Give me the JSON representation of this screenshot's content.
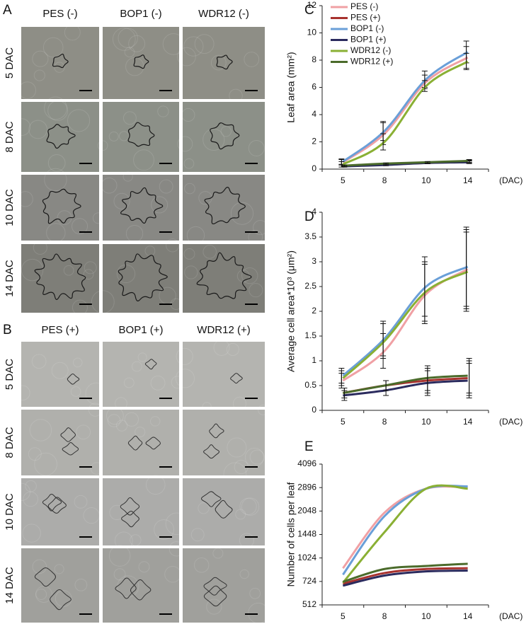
{
  "micrographs": [
    {
      "panel": "A",
      "columns": [
        "PES (-)",
        "BOP1 (-)",
        "WDR12 (-)"
      ],
      "rows": [
        "5 DAC",
        "8 DAC",
        "10 DAC",
        "14 DAC"
      ]
    },
    {
      "panel": "B",
      "columns": [
        "PES (+)",
        "BOP1 (+)",
        "WDR12 (+)"
      ],
      "rows": [
        "5 DAC",
        "8 DAC",
        "10 DAC",
        "14 DAC"
      ]
    }
  ],
  "chart_data": [
    {
      "type": "line",
      "panel": "C",
      "y_label": "Leaf area (mm²)",
      "x_label": "(DAC)",
      "categories": [
        "5",
        "8",
        "10",
        "14"
      ],
      "ylim": [
        0,
        12
      ],
      "yticks": [
        0,
        2,
        4,
        6,
        8,
        10,
        12
      ],
      "legend": "upper left",
      "series": [
        {
          "name": "PES (-)",
          "color": "#f0a0a4",
          "values": [
            0.5,
            2.6,
            6.4,
            8.2
          ],
          "errors": [
            0.2,
            0.8,
            0.5,
            0.8
          ]
        },
        {
          "name": "PES (+)",
          "color": "#a8322e",
          "values": [
            0.2,
            0.35,
            0.45,
            0.55
          ],
          "errors": [
            0.05,
            0.05,
            0.05,
            0.1
          ]
        },
        {
          "name": "BOP1 (-)",
          "color": "#6a9fd8",
          "values": [
            0.55,
            2.8,
            6.6,
            8.6
          ],
          "errors": [
            0.2,
            0.7,
            0.6,
            0.8
          ]
        },
        {
          "name": "BOP1 (+)",
          "color": "#2b2b5e",
          "values": [
            0.2,
            0.3,
            0.45,
            0.5
          ],
          "errors": [
            0.05,
            0.05,
            0.05,
            0.1
          ]
        },
        {
          "name": "WDR12 (-)",
          "color": "#8ab034",
          "values": [
            0.35,
            2.0,
            6.1,
            7.9
          ],
          "errors": [
            0.2,
            0.6,
            0.4,
            0.6
          ]
        },
        {
          "name": "WDR12 (+)",
          "color": "#4b6b2b",
          "values": [
            0.25,
            0.4,
            0.5,
            0.6
          ],
          "errors": [
            0.05,
            0.05,
            0.05,
            0.1
          ]
        }
      ]
    },
    {
      "type": "line",
      "panel": "D",
      "y_label": "Average cell area*10³ (μm²)",
      "x_label": "(DAC)",
      "categories": [
        "5",
        "8",
        "10",
        "14"
      ],
      "ylim": [
        0,
        4
      ],
      "yticks": [
        0,
        0.5,
        1,
        1.5,
        2,
        2.5,
        3,
        3.5,
        4
      ],
      "series": [
        {
          "name": "PES (-)",
          "color": "#f0a0a4",
          "values": [
            0.6,
            1.2,
            2.35,
            2.85
          ],
          "errors": [
            0.15,
            0.35,
            0.6,
            0.8
          ]
        },
        {
          "name": "PES (+)",
          "color": "#a8322e",
          "values": [
            0.35,
            0.5,
            0.6,
            0.65
          ],
          "errors": [
            0.1,
            0.1,
            0.25,
            0.35
          ]
        },
        {
          "name": "BOP1 (-)",
          "color": "#6a9fd8",
          "values": [
            0.7,
            1.45,
            2.5,
            2.9
          ],
          "errors": [
            0.15,
            0.35,
            0.6,
            0.8
          ]
        },
        {
          "name": "BOP1 (+)",
          "color": "#2b2b5e",
          "values": [
            0.3,
            0.4,
            0.55,
            0.6
          ],
          "errors": [
            0.1,
            0.1,
            0.25,
            0.35
          ]
        },
        {
          "name": "WDR12 (-)",
          "color": "#8ab034",
          "values": [
            0.65,
            1.4,
            2.4,
            2.8
          ],
          "errors": [
            0.15,
            0.35,
            0.6,
            0.8
          ]
        },
        {
          "name": "WDR12 (+)",
          "color": "#4b6b2b",
          "values": [
            0.35,
            0.5,
            0.65,
            0.7
          ],
          "errors": [
            0.1,
            0.1,
            0.25,
            0.35
          ]
        }
      ]
    },
    {
      "type": "line",
      "panel": "E",
      "y_label": "Number of cells per leaf",
      "x_label": "(DAC)",
      "categories": [
        "5",
        "8",
        "10",
        "14"
      ],
      "yscale": "log",
      "ylim": [
        512,
        4096
      ],
      "yticks": [
        512,
        724,
        1024,
        1448,
        2048,
        2896,
        4096
      ],
      "series": [
        {
          "name": "PES (-)",
          "color": "#f0a0a4",
          "values": [
            880,
            2000,
            2850,
            2900
          ]
        },
        {
          "name": "PES (+)",
          "color": "#a8322e",
          "values": [
            700,
            820,
            870,
            880
          ]
        },
        {
          "name": "BOP1 (-)",
          "color": "#6a9fd8",
          "values": [
            800,
            1900,
            2850,
            2950
          ]
        },
        {
          "name": "BOP1 (+)",
          "color": "#2b2b5e",
          "values": [
            680,
            790,
            840,
            850
          ]
        },
        {
          "name": "WDR12 (-)",
          "color": "#8ab034",
          "values": [
            710,
            1500,
            2850,
            2850
          ]
        },
        {
          "name": "WDR12 (+)",
          "color": "#4b6b2b",
          "values": [
            720,
            870,
            910,
            940
          ]
        }
      ]
    }
  ]
}
